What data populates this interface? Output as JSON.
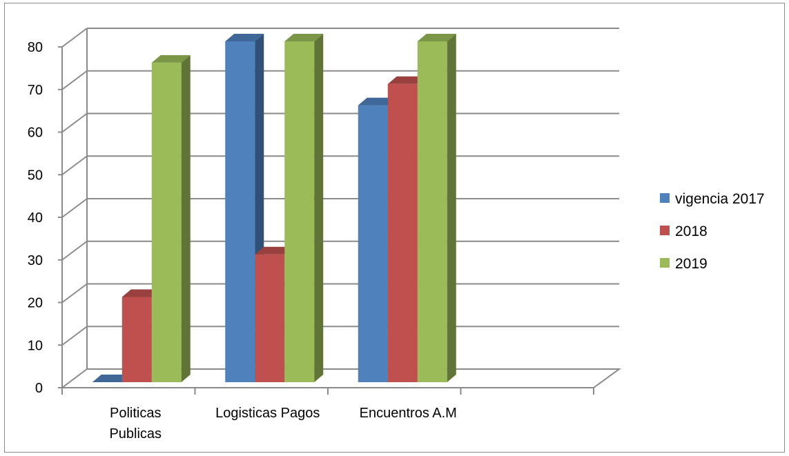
{
  "chart_data": {
    "type": "bar",
    "title": "",
    "xlabel": "",
    "ylabel": "",
    "ylim": [
      0,
      80
    ],
    "yticks": [
      0,
      10,
      20,
      30,
      40,
      50,
      60,
      70,
      80
    ],
    "grid": true,
    "legend_position": "right",
    "categories": [
      [
        "Politicas",
        "Publicas"
      ],
      [
        "Logisticas Pagos"
      ],
      [
        "Encuentros A.M"
      ]
    ],
    "series": [
      {
        "name": "vigencia 2017",
        "color": "#4F81BD",
        "values": [
          0,
          80,
          65
        ]
      },
      {
        "name": "2018",
        "color": "#C0504D",
        "values": [
          20,
          30,
          70
        ]
      },
      {
        "name": "2019",
        "color": "#9BBB59",
        "values": [
          75,
          80,
          80
        ]
      }
    ]
  }
}
